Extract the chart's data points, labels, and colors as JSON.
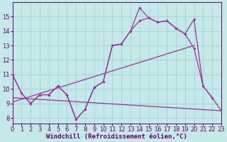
{
  "bg_color": "#c5e8e8",
  "line_color": "#993399",
  "grid_color": "#a8d4d4",
  "axis_color": "#660066",
  "xlim": [
    0,
    23
  ],
  "ylim": [
    7.6,
    16.0
  ],
  "yticks": [
    8,
    9,
    10,
    11,
    12,
    13,
    14,
    15
  ],
  "xticks": [
    0,
    1,
    2,
    3,
    4,
    5,
    6,
    7,
    8,
    9,
    10,
    11,
    12,
    13,
    14,
    15,
    16,
    17,
    18,
    19,
    20,
    21,
    22,
    23
  ],
  "line1_x": [
    0,
    1,
    2,
    3,
    4,
    5,
    6,
    7,
    8,
    9,
    10,
    11,
    12,
    13,
    14,
    15,
    16,
    17,
    18,
    19,
    20,
    21,
    22,
    23
  ],
  "line1_y": [
    11.0,
    9.7,
    9.0,
    9.6,
    9.6,
    10.2,
    9.6,
    7.9,
    8.6,
    10.1,
    10.5,
    13.0,
    13.1,
    14.0,
    15.6,
    14.9,
    14.6,
    14.7,
    14.2,
    13.8,
    12.8,
    10.2,
    9.4,
    8.5
  ],
  "line2_x": [
    0,
    1,
    2,
    3,
    4,
    5,
    6,
    7,
    8,
    9,
    10,
    11,
    12,
    13,
    14,
    15,
    16,
    17,
    18,
    19,
    20,
    21,
    22
  ],
  "line2_y": [
    11.0,
    9.7,
    9.0,
    9.6,
    9.6,
    10.2,
    9.6,
    7.9,
    8.6,
    10.1,
    10.5,
    13.0,
    13.1,
    14.0,
    14.7,
    14.9,
    14.6,
    14.7,
    14.2,
    13.8,
    14.8,
    10.2,
    9.4
  ],
  "line3_x": [
    0,
    20
  ],
  "line3_y": [
    9.1,
    13.0
  ],
  "line4_x": [
    0,
    23
  ],
  "line4_y": [
    9.4,
    8.5
  ],
  "xlabel": "Windchill (Refroidissement éolien,°C)",
  "xlabel_fontsize": 6.5,
  "tick_fontsize": 6
}
